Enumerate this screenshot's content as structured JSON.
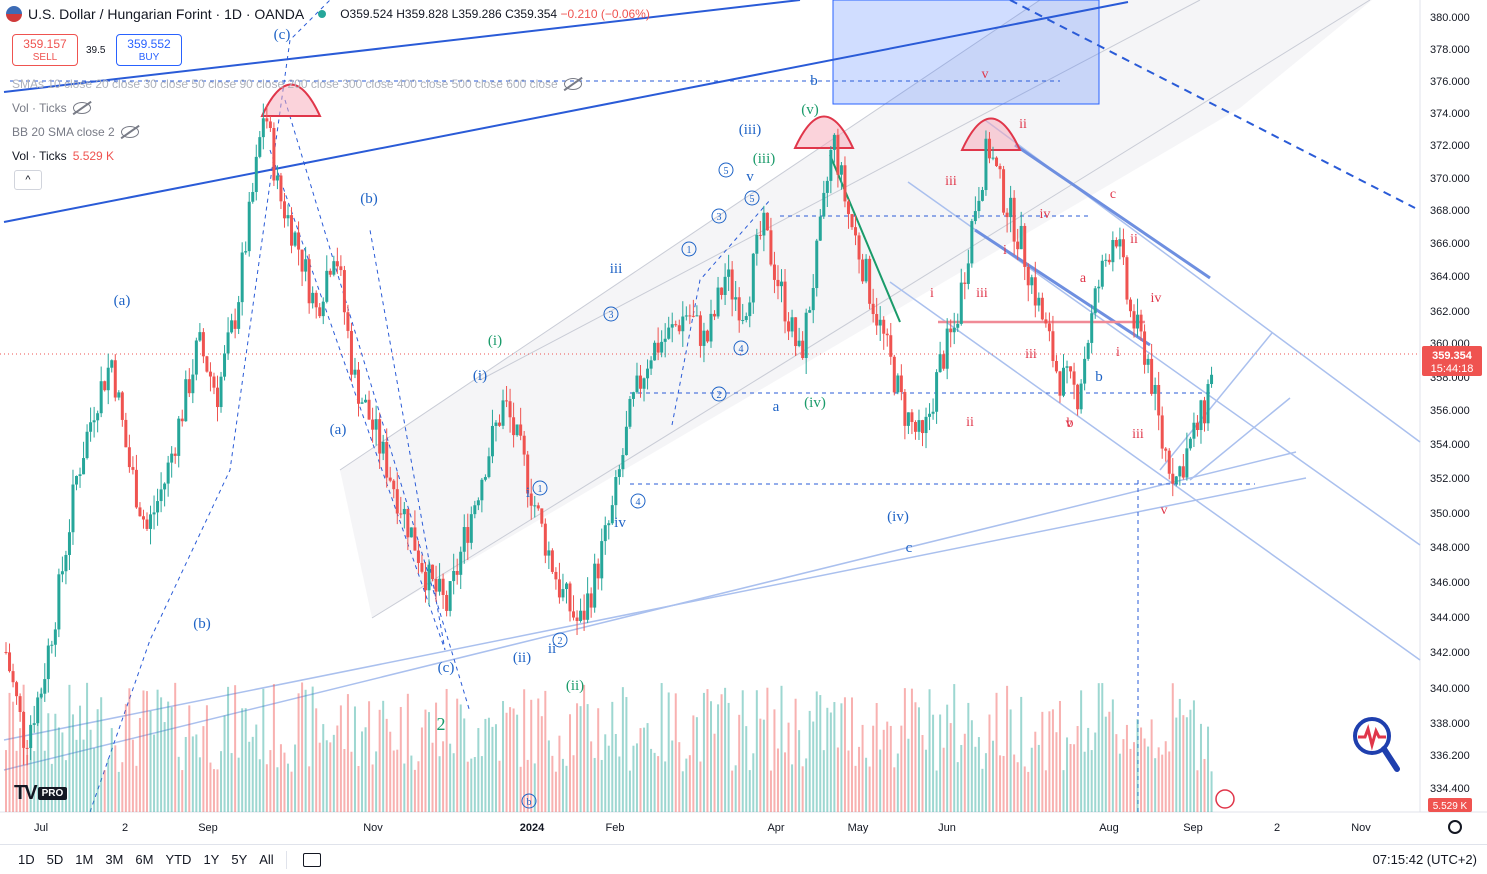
{
  "header": {
    "symbol": "U.S. Dollar / Hungarian Forint · 1D · OANDA",
    "ohlc_open": "O359.524",
    "ohlc_high": "H359.828",
    "ohlc_low": "L359.286",
    "ohlc_close": "C359.354",
    "ohlc_change": "−0.210 (−0.06%)"
  },
  "trade": {
    "sell_price": "359.157",
    "sell_label": "SELL",
    "spread": "39.5",
    "buy_price": "359.552",
    "buy_label": "BUY"
  },
  "indicators": {
    "smas": "SMAs 10 close 20 close 30 close 50 close 90 close 200 close 300 close 400 close 500 close 600 close",
    "vol1": "Vol · Ticks",
    "bb": "BB 20 SMA close 2",
    "vol2_name": "Vol · Ticks",
    "vol2_value": "5.529 K"
  },
  "collapse_label": "^",
  "brand": {
    "logo": "TV",
    "pro": "PRO"
  },
  "bottombar": {
    "timeframes": [
      "1D",
      "5D",
      "1M",
      "3M",
      "6M",
      "YTD",
      "1Y",
      "5Y",
      "All"
    ],
    "clock": "07:15:42 (UTC+2)"
  },
  "colors": {
    "up": "#26a69a",
    "down": "#ef5350",
    "blue": "#2962ff",
    "wave_blue": "#1e63c6",
    "wave_green": "#1a9b6a",
    "wave_red": "#e0364a",
    "channel": "#aac0ee"
  },
  "chart_data": {
    "type": "candlestick",
    "symbol": "USDHUF",
    "interval": "1D",
    "y_axis": {
      "ticks": [
        "380.000",
        "378.000",
        "376.000",
        "374.000",
        "372.000",
        "370.000",
        "368.000",
        "366.000",
        "364.000",
        "362.000",
        "360.000",
        "358.000",
        "356.000",
        "354.000",
        "352.000",
        "350.000",
        "348.000",
        "346.000",
        "344.000",
        "342.000",
        "340.000",
        "338.000",
        "336.200",
        "334.400"
      ],
      "tick_values": [
        380,
        378,
        376,
        374,
        372,
        370,
        368,
        366,
        364,
        362,
        360,
        358,
        356,
        354,
        352,
        350,
        348,
        346,
        344,
        342,
        340,
        338,
        336.2,
        334.4
      ]
    },
    "x_axis": {
      "ticks": [
        "Jul",
        "2",
        "Sep",
        "Nov",
        "2024",
        "Feb",
        "Apr",
        "May",
        "Jun",
        "Aug",
        "Sep",
        "2",
        "Nov"
      ]
    },
    "last_price": "359.354",
    "countdown": "15:44:18",
    "volume_last": "5.529 K",
    "close_path": [
      {
        "d": 0,
        "c": 342.0
      },
      {
        "d": 8,
        "c": 337.0
      },
      {
        "d": 15,
        "c": 340.0
      },
      {
        "d": 22,
        "c": 345.0
      },
      {
        "d": 30,
        "c": 352.0
      },
      {
        "d": 38,
        "c": 356.5
      },
      {
        "d": 45,
        "c": 359.0
      },
      {
        "d": 52,
        "c": 353.0
      },
      {
        "d": 60,
        "c": 349.0
      },
      {
        "d": 68,
        "c": 352.0
      },
      {
        "d": 75,
        "c": 356.0
      },
      {
        "d": 82,
        "c": 360.0
      },
      {
        "d": 90,
        "c": 357.0
      },
      {
        "d": 98,
        "c": 362.0
      },
      {
        "d": 106,
        "c": 370.0
      },
      {
        "d": 110,
        "c": 374.5
      },
      {
        "d": 116,
        "c": 369.0
      },
      {
        "d": 124,
        "c": 366.0
      },
      {
        "d": 132,
        "c": 362.0
      },
      {
        "d": 140,
        "c": 366.0
      },
      {
        "d": 148,
        "c": 358.0
      },
      {
        "d": 156,
        "c": 355.0
      },
      {
        "d": 164,
        "c": 352.0
      },
      {
        "d": 172,
        "c": 349.0
      },
      {
        "d": 180,
        "c": 346.0
      },
      {
        "d": 188,
        "c": 344.5
      },
      {
        "d": 196,
        "c": 349.0
      },
      {
        "d": 204,
        "c": 353.0
      },
      {
        "d": 212,
        "c": 356.5
      },
      {
        "d": 220,
        "c": 353.0
      },
      {
        "d": 228,
        "c": 349.0
      },
      {
        "d": 236,
        "c": 345.5
      },
      {
        "d": 244,
        "c": 343.5
      },
      {
        "d": 250,
        "c": 346.0
      },
      {
        "d": 258,
        "c": 350.0
      },
      {
        "d": 266,
        "c": 356.0
      },
      {
        "d": 274,
        "c": 359.5
      },
      {
        "d": 282,
        "c": 360.5
      },
      {
        "d": 290,
        "c": 362.0
      },
      {
        "d": 298,
        "c": 360.0
      },
      {
        "d": 306,
        "c": 364.0
      },
      {
        "d": 314,
        "c": 362.0
      },
      {
        "d": 322,
        "c": 367.0
      },
      {
        "d": 330,
        "c": 363.0
      },
      {
        "d": 338,
        "c": 359.0
      },
      {
        "d": 346,
        "c": 366.0
      },
      {
        "d": 352,
        "c": 372.5
      },
      {
        "d": 358,
        "c": 368.0
      },
      {
        "d": 366,
        "c": 364.0
      },
      {
        "d": 374,
        "c": 360.0
      },
      {
        "d": 382,
        "c": 356.0
      },
      {
        "d": 390,
        "c": 354.0
      },
      {
        "d": 398,
        "c": 359.0
      },
      {
        "d": 404,
        "c": 361.0
      },
      {
        "d": 412,
        "c": 368.0
      },
      {
        "d": 418,
        "c": 372.0
      },
      {
        "d": 424,
        "c": 369.0
      },
      {
        "d": 432,
        "c": 366.0
      },
      {
        "d": 440,
        "c": 362.0
      },
      {
        "d": 448,
        "c": 358.0
      },
      {
        "d": 456,
        "c": 357.0
      },
      {
        "d": 464,
        "c": 363.0
      },
      {
        "d": 472,
        "c": 367.0
      },
      {
        "d": 478,
        "c": 362.0
      },
      {
        "d": 486,
        "c": 359.0
      },
      {
        "d": 492,
        "c": 354.0
      },
      {
        "d": 498,
        "c": 352.0
      },
      {
        "d": 504,
        "c": 354.0
      },
      {
        "d": 510,
        "c": 356.0
      },
      {
        "d": 514,
        "c": 359.4
      }
    ]
  },
  "annotations": {
    "blue": [
      "(c)",
      "(b)",
      "(a)",
      "(a)",
      "(b)",
      "(c)",
      "(i)",
      "(ii)",
      "b",
      "(iii)",
      "v",
      "iii",
      "(iv)",
      "c",
      "a",
      "ii",
      "i",
      "iv",
      "b"
    ],
    "circled_blue": [
      "5",
      "3",
      "1",
      "5",
      "3",
      "4",
      "2",
      "1",
      "2",
      "4",
      "b"
    ],
    "green": [
      "(v)",
      "(iii)",
      "(i)",
      "(ii)",
      "(iv)",
      "2"
    ],
    "red": [
      "v",
      "ii",
      "iii",
      "i",
      "ii",
      "iv",
      "i",
      "iii",
      "c",
      "ii",
      "a",
      "iv",
      "i",
      "iii",
      "b",
      "v",
      "iii",
      "v"
    ]
  }
}
